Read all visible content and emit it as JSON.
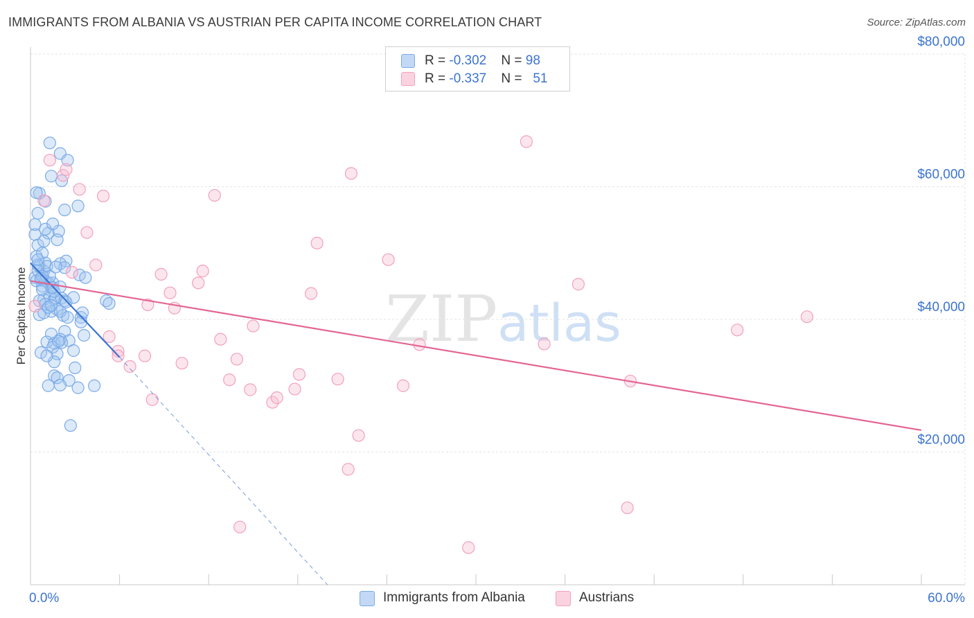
{
  "title": "IMMIGRANTS FROM ALBANIA VS AUSTRIAN PER CAPITA INCOME CORRELATION CHART",
  "source": "Source: ZipAtlas.com",
  "watermark": {
    "zip": "ZIP",
    "atlas": "atlas"
  },
  "legend": {
    "rows": [
      {
        "r_label": "R = ",
        "r_value": "-0.302",
        "n_label": "N = ",
        "n_value": "98"
      },
      {
        "r_label": "R = ",
        "r_value": "-0.337",
        "n_label": "N = ",
        "n_value": "51"
      }
    ]
  },
  "chart_data": {
    "type": "scatter",
    "title": "IMMIGRANTS FROM ALBANIA VS AUSTRIAN PER CAPITA INCOME CORRELATION CHART",
    "xlabel": "",
    "ylabel": "Per Capita Income",
    "xlim": [
      0,
      60
    ],
    "ylim": [
      0,
      80000
    ],
    "x_tick_labels": [
      "0.0%",
      "60.0%"
    ],
    "y_ticks": [
      20000,
      40000,
      60000,
      80000
    ],
    "y_tick_labels": [
      "$20,000",
      "$40,000",
      "$60,000",
      "$80,000"
    ],
    "grid": true,
    "legend_position": "bottom",
    "series": [
      {
        "name": "Immigrants from Albania",
        "color": "#7aaae8",
        "line_color": "#3b73d0",
        "trend": {
          "x": [
            0.0,
            6.0
          ],
          "y": [
            48500,
            34300
          ]
        },
        "trend_extension": {
          "x": [
            6.0,
            20.0
          ],
          "y": [
            34300,
            0
          ]
        },
        "points": [
          [
            0.3,
            52800
          ],
          [
            0.4,
            49500
          ],
          [
            0.5,
            56000
          ],
          [
            0.6,
            59000
          ],
          [
            0.4,
            59100
          ],
          [
            0.3,
            54300
          ],
          [
            0.5,
            51200
          ],
          [
            0.8,
            50000
          ],
          [
            0.6,
            48000
          ],
          [
            0.9,
            47300
          ],
          [
            1.0,
            48500
          ],
          [
            1.1,
            48000
          ],
          [
            0.7,
            45900
          ],
          [
            0.3,
            46300
          ],
          [
            0.8,
            45000
          ],
          [
            1.2,
            45500
          ],
          [
            1.5,
            45500
          ],
          [
            1.4,
            44800
          ],
          [
            1.3,
            43500
          ],
          [
            0.9,
            43000
          ],
          [
            1.6,
            43000
          ],
          [
            1.7,
            43200
          ],
          [
            2.1,
            43200
          ],
          [
            2.3,
            42800
          ],
          [
            1.8,
            41500
          ],
          [
            1.4,
            41200
          ],
          [
            0.6,
            40700
          ],
          [
            0.9,
            41000
          ],
          [
            2.2,
            40600
          ],
          [
            3.4,
            40300
          ],
          [
            3.5,
            41000
          ],
          [
            1.4,
            37800
          ],
          [
            2.3,
            38200
          ],
          [
            3.6,
            37600
          ],
          [
            1.1,
            36600
          ],
          [
            1.6,
            36400
          ],
          [
            2.0,
            37000
          ],
          [
            2.6,
            36800
          ],
          [
            0.7,
            35000
          ],
          [
            1.5,
            35800
          ],
          [
            2.9,
            35300
          ],
          [
            1.8,
            34800
          ],
          [
            1.6,
            33600
          ],
          [
            3.0,
            32700
          ],
          [
            1.6,
            31500
          ],
          [
            1.8,
            31200
          ],
          [
            2.6,
            30800
          ],
          [
            2.0,
            30100
          ],
          [
            3.2,
            29700
          ],
          [
            4.3,
            30000
          ],
          [
            1.2,
            30000
          ],
          [
            2.7,
            24000
          ],
          [
            1.0,
            45800
          ],
          [
            1.3,
            46500
          ],
          [
            2.4,
            48800
          ],
          [
            2.0,
            48400
          ],
          [
            3.3,
            46700
          ],
          [
            3.7,
            46300
          ],
          [
            1.9,
            53300
          ],
          [
            1.2,
            53000
          ],
          [
            1.0,
            53600
          ],
          [
            1.5,
            54400
          ],
          [
            2.3,
            56500
          ],
          [
            3.2,
            57100
          ],
          [
            1.4,
            61600
          ],
          [
            2.1,
            60900
          ],
          [
            2.0,
            65000
          ],
          [
            2.5,
            64000
          ],
          [
            1.3,
            66600
          ],
          [
            0.5,
            47400
          ],
          [
            0.4,
            45800
          ],
          [
            0.6,
            42800
          ],
          [
            1.0,
            42300
          ],
          [
            1.2,
            41800
          ],
          [
            2.0,
            41200
          ],
          [
            2.5,
            40300
          ],
          [
            5.1,
            42800
          ],
          [
            5.3,
            42400
          ],
          [
            2.4,
            42600
          ],
          [
            1.6,
            44200
          ],
          [
            0.8,
            46500
          ],
          [
            0.5,
            48200
          ],
          [
            0.9,
            51800
          ],
          [
            1.8,
            52000
          ],
          [
            1.0,
            57800
          ],
          [
            2.3,
            47800
          ],
          [
            1.7,
            47900
          ],
          [
            0.5,
            49000
          ],
          [
            0.8,
            44500
          ],
          [
            1.5,
            44800
          ],
          [
            2.0,
            44900
          ],
          [
            2.9,
            43300
          ],
          [
            3.4,
            39600
          ],
          [
            2.1,
            36500
          ],
          [
            1.1,
            34500
          ],
          [
            1.9,
            36700
          ],
          [
            1.4,
            42100
          ],
          [
            0.7,
            46200
          ]
        ]
      },
      {
        "name": "Austrians",
        "color": "#f2a0bc",
        "line_color": "#e36593",
        "trend": {
          "x": [
            0.0,
            60.0
          ],
          "y": [
            45800,
            23300
          ]
        },
        "points": [
          [
            0.3,
            42000
          ],
          [
            0.9,
            57900
          ],
          [
            2.2,
            61700
          ],
          [
            2.4,
            62600
          ],
          [
            1.3,
            64000
          ],
          [
            3.3,
            59600
          ],
          [
            4.9,
            58600
          ],
          [
            3.8,
            53100
          ],
          [
            4.4,
            48200
          ],
          [
            2.8,
            47100
          ],
          [
            5.3,
            37400
          ],
          [
            5.9,
            35200
          ],
          [
            5.9,
            34500
          ],
          [
            6.7,
            32900
          ],
          [
            7.7,
            34500
          ],
          [
            7.9,
            42200
          ],
          [
            8.2,
            27900
          ],
          [
            8.8,
            46800
          ],
          [
            9.4,
            44000
          ],
          [
            9.7,
            41700
          ],
          [
            10.2,
            33400
          ],
          [
            11.3,
            45500
          ],
          [
            11.6,
            47300
          ],
          [
            12.4,
            58700
          ],
          [
            12.8,
            37000
          ],
          [
            13.4,
            30900
          ],
          [
            13.9,
            34000
          ],
          [
            14.8,
            29400
          ],
          [
            15.0,
            39000
          ],
          [
            16.3,
            27500
          ],
          [
            16.6,
            28200
          ],
          [
            17.8,
            29500
          ],
          [
            18.1,
            31700
          ],
          [
            18.9,
            43900
          ],
          [
            19.3,
            51500
          ],
          [
            20.7,
            31000
          ],
          [
            21.4,
            17400
          ],
          [
            21.6,
            62000
          ],
          [
            22.1,
            22500
          ],
          [
            24.1,
            49000
          ],
          [
            25.1,
            30000
          ],
          [
            26.2,
            36200
          ],
          [
            29.5,
            5600
          ],
          [
            33.4,
            66800
          ],
          [
            34.6,
            36300
          ],
          [
            36.9,
            45300
          ],
          [
            40.4,
            30700
          ],
          [
            40.2,
            11600
          ],
          [
            47.6,
            38400
          ],
          [
            52.3,
            40400
          ],
          [
            14.1,
            8700
          ]
        ]
      }
    ]
  }
}
